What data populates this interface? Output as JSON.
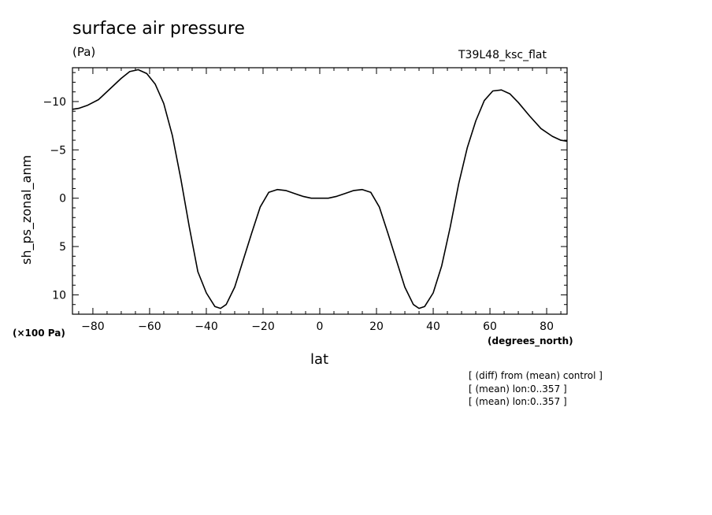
{
  "title": "surface air pressure",
  "units": "(Pa)",
  "run_label": "T39L48_ksc_flat",
  "y_scale_note": "(×100 Pa)",
  "notes": [
    "[ (diff) from (mean) control ]",
    "[ (mean) lon:0..357 ]",
    "[ (mean) lon:0..357 ]"
  ],
  "chart_data": {
    "type": "line",
    "title": "surface air pressure",
    "xlabel": "lat",
    "x_units": "(degrees_north)",
    "ylabel": "sh_ps_zonal_anm",
    "y_units": "(×100 Pa)",
    "xlim": [
      -87.2,
      87.2
    ],
    "ylim": [
      12,
      -13.5
    ],
    "y_inverted": true,
    "x_ticks": [
      -80,
      -60,
      -40,
      -20,
      0,
      20,
      40,
      60,
      80
    ],
    "x_tick_labels": [
      "−80",
      "−60",
      "−40",
      "−20",
      "0",
      "20",
      "40",
      "60",
      "80"
    ],
    "y_ticks": [
      -10,
      -5,
      0,
      5,
      10
    ],
    "y_tick_labels": [
      "−10",
      "−5",
      "0",
      "5",
      "10"
    ],
    "grid": false,
    "series": [
      {
        "x": [
          -87.2,
          -85,
          -82,
          -78,
          -74,
          -70,
          -67,
          -64,
          -61,
          -58,
          -55,
          -52,
          -49,
          -46,
          -43,
          -40,
          -37,
          -35,
          -33,
          -30,
          -27,
          -24,
          -21,
          -18,
          -15,
          -12,
          -9,
          -6,
          -3,
          0,
          3,
          6,
          9,
          12,
          15,
          18,
          21,
          24,
          27,
          30,
          33,
          35,
          37,
          40,
          43,
          46,
          49,
          52,
          55,
          58,
          61,
          64,
          67,
          70,
          74,
          78,
          82,
          85,
          87.2
        ],
        "y": [
          -9.2,
          -9.3,
          -9.6,
          -10.2,
          -11.3,
          -12.4,
          -13.1,
          -13.3,
          -12.9,
          -11.8,
          -9.8,
          -6.5,
          -2.0,
          3.0,
          7.6,
          9.8,
          11.2,
          11.4,
          11.0,
          9.2,
          6.4,
          3.6,
          0.9,
          -0.6,
          -0.9,
          -0.8,
          -0.5,
          -0.2,
          0.0,
          0.0,
          0.0,
          -0.2,
          -0.5,
          -0.8,
          -0.9,
          -0.6,
          0.9,
          3.6,
          6.4,
          9.2,
          11.0,
          11.4,
          11.2,
          9.8,
          7.0,
          3.0,
          -1.5,
          -5.2,
          -8.0,
          -10.1,
          -11.1,
          -11.2,
          -10.8,
          -9.9,
          -8.5,
          -7.2,
          -6.4,
          -6.0,
          -5.9
        ]
      }
    ]
  }
}
